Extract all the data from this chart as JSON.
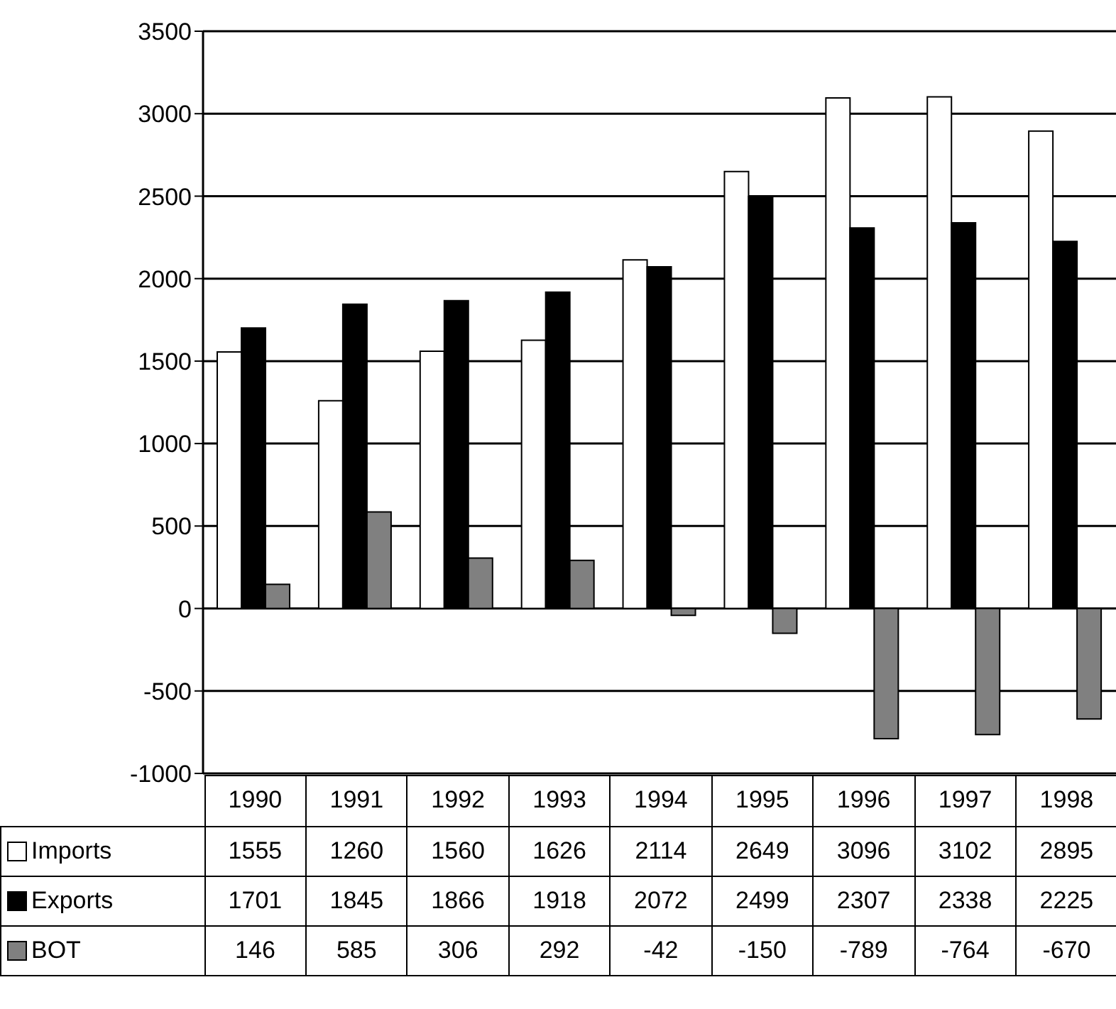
{
  "chart_data": {
    "type": "bar",
    "categories": [
      "1990",
      "1991",
      "1992",
      "1993",
      "1994",
      "1995",
      "1996",
      "1997",
      "1998"
    ],
    "series": [
      {
        "name": "Imports",
        "color": "#ffffff",
        "values": [
          1555,
          1260,
          1560,
          1626,
          2114,
          2649,
          3096,
          3102,
          2895
        ]
      },
      {
        "name": "Exports",
        "color": "#000000",
        "values": [
          1701,
          1845,
          1866,
          1918,
          2072,
          2499,
          2307,
          2338,
          2225
        ]
      },
      {
        "name": "BOT",
        "color": "#808080",
        "values": [
          146,
          585,
          306,
          292,
          -42,
          -150,
          -789,
          -764,
          -670
        ]
      }
    ],
    "ylim": [
      -1000,
      3500
    ],
    "yticks": [
      -1000,
      -500,
      0,
      500,
      1000,
      1500,
      2000,
      2500,
      3000,
      3500
    ],
    "grid": "y",
    "legend": "bottom",
    "data_labels": true
  }
}
